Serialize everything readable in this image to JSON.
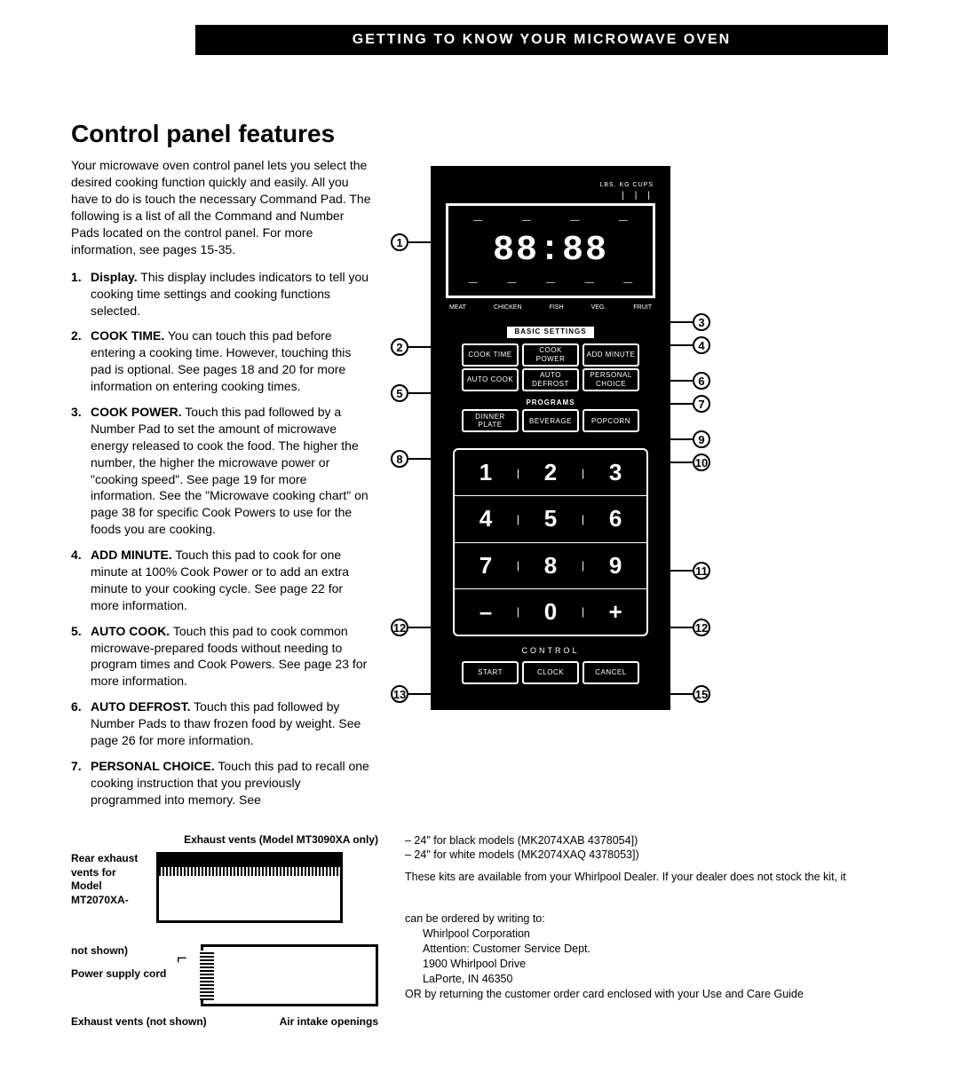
{
  "header": "GETTING TO KNOW YOUR MICROWAVE OVEN",
  "title": "Control panel features",
  "intro": "Your microwave oven control panel lets you select the desired cooking function quickly and easily. All you have to do is touch the necessary Command Pad. The following is a list of all the Command and Number Pads located on the control panel. For more information, see pages 15-35.",
  "features": [
    {
      "n": "1.",
      "kw": "Display.",
      "body": "This display includes indicators to tell you cooking time settings and cooking functions selected."
    },
    {
      "n": "2.",
      "kw": "COOK TIME.",
      "body": "You can touch this pad before entering a cooking time. However, touching this pad is optional. See pages 18 and 20 for more information on entering cooking times."
    },
    {
      "n": "3.",
      "kw": "COOK POWER.",
      "body": "Touch this pad followed by a Number Pad to set the amount of microwave energy released to cook the food. The higher the number, the higher the microwave power or \"cooking speed\". See page 19 for more information. See the \"Microwave cooking chart\" on page 38 for specific Cook Powers to use for the foods you are cooking."
    },
    {
      "n": "4.",
      "kw": "ADD MINUTE.",
      "body": "Touch this pad to cook for one minute at 100% Cook Power or to add an extra minute to your cooking cycle. See page 22 for more information."
    },
    {
      "n": "5.",
      "kw": "AUTO COOK.",
      "body": "Touch this pad to cook common microwave-prepared foods without needing to program times and Cook Powers. See page 23 for more information."
    },
    {
      "n": "6.",
      "kw": "AUTO DEFROST.",
      "body": "Touch this pad followed by Number Pads to thaw frozen food by weight. See page 26 for more information."
    },
    {
      "n": "7.",
      "kw": "PERSONAL CHOICE.",
      "body": "Touch this pad to recall one cooking instruction that you previously programmed into memory. See"
    }
  ],
  "panel": {
    "lbs": "LBS.  KG  CUPS",
    "digits": "88:88",
    "foods": [
      "MEAT",
      "CHICKEN",
      "FISH",
      "VEG.",
      "FRUIT"
    ],
    "basic_label": "BASIC SETTINGS",
    "basic": [
      "COOK TIME",
      "COOK POWER",
      "ADD MINUTE"
    ],
    "row2": [
      "AUTO COOK",
      "AUTO DEFROST",
      "PERSONAL CHOICE"
    ],
    "progs_label": "PROGRAMS",
    "progs": [
      "DINNER PLATE",
      "BEVERAGE",
      "POPCORN"
    ],
    "keypad": [
      [
        "1",
        "2",
        "3"
      ],
      [
        "4",
        "5",
        "6"
      ],
      [
        "7",
        "8",
        "9"
      ],
      [
        "–",
        "0",
        "+"
      ]
    ],
    "control_label": "CONTROL",
    "control": [
      "START",
      "CLOCK",
      "CANCEL"
    ]
  },
  "callouts_left": [
    "1",
    "2",
    "5",
    "8",
    "12",
    "13"
  ],
  "callouts_right": [
    "3",
    "4",
    "6",
    "7",
    "9",
    "10",
    "11",
    "12",
    "15"
  ],
  "bottom": {
    "exhaust_label": "Exhaust vents (Model MT3090XA only)",
    "rear_label": "Rear exhaust vents for Model MT2070XA-",
    "not_shown": "not shown)",
    "power": "Power supply cord",
    "exhaust2": "Exhaust vents (not shown)",
    "air": "Air intake openings",
    "kits_line1": "– 24\" for black models (MK2074XAB 4378054])",
    "kits_line2": "– 24\" for white models (MK2074XAQ 4378053])",
    "kits_body": "These kits are available from your Whirlpool Dealer. If your dealer does not stock the kit, it",
    "order_intro": "can be ordered by writing to:",
    "addr1": "Whirlpool Corporation",
    "addr2": "Attention: Customer Service Dept.",
    "addr3": "1900 Whirlpool Drive",
    "addr4": "LaPorte, IN 46350",
    "or": "OR by returning the customer order card enclosed with your Use and Care Guide"
  }
}
